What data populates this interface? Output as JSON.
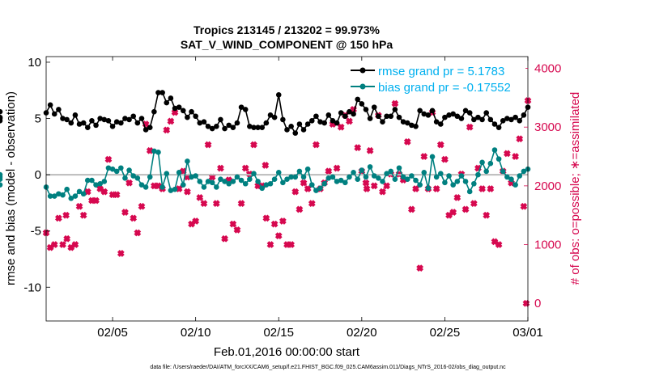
{
  "chart_data": {
    "type": "line",
    "title": "Tropics 213145 / 213202 = 99.973%",
    "subtitle": "SAT_V_WIND_COMPONENT @ 150 hPa",
    "xlabel": "Feb.01,2016 00:00:00 start",
    "ylabel": "rmse and bias (model - observation)",
    "y2label": "# of obs: o=possible; ∗=assimilated",
    "footer": "data file: /Users/raeder/DAI/ATM_forcXX/CAM6_setup/f.e21.FHIST_BGC.f09_025.CAM6assim.011/Diags_NTrS_2016-02/obs_diag_output.nc",
    "xlim": [
      1,
      30
    ],
    "ylim": [
      -13,
      10.5
    ],
    "y2lim": [
      -300,
      4200
    ],
    "xticks": [
      5,
      10,
      15,
      20,
      25,
      30
    ],
    "xtick_labels": [
      "02/05",
      "02/10",
      "02/15",
      "02/20",
      "02/25",
      "03/01"
    ],
    "yticks": [
      10,
      5,
      0,
      -5,
      -10
    ],
    "y2ticks": [
      4000,
      3000,
      2000,
      1000,
      0
    ],
    "legend": [
      "rmse grand pr = 5.1783",
      "bias grand pr = -0.17552"
    ],
    "legend_position": "top-right",
    "colors": {
      "rmse": "#000000",
      "bias": "#008080",
      "obs": "#d6084f",
      "zero_line": "#bbbbbb",
      "title": "#000000",
      "legend_text": "#00b0ef"
    },
    "x_rmse": [
      1.0,
      1.25,
      1.5,
      1.75,
      2.0,
      2.25,
      2.5,
      2.75,
      3.0,
      3.25,
      3.5,
      3.75,
      4.0,
      4.25,
      4.5,
      4.75,
      5.0,
      5.25,
      5.5,
      5.75,
      6.0,
      6.25,
      6.5,
      6.75,
      7.0,
      7.25,
      7.5,
      7.75,
      8.0,
      8.25,
      8.5,
      8.75,
      9.0,
      9.25,
      9.5,
      9.75,
      10.0,
      10.25,
      10.5,
      10.75,
      11.0,
      11.25,
      11.5,
      11.75,
      12.0,
      12.25,
      12.5,
      12.75,
      13.0,
      13.25,
      13.5,
      13.75,
      14.0,
      14.25,
      14.5,
      14.75,
      15.0,
      15.25,
      15.5,
      15.75,
      16.0,
      16.25,
      16.5,
      16.75,
      17.0,
      17.25,
      17.5,
      17.75,
      18.0,
      18.25,
      18.5,
      18.75,
      19.0,
      19.25,
      19.5,
      19.75,
      20.0,
      20.25,
      20.5,
      20.75,
      21.0,
      21.25,
      21.5,
      21.75,
      22.0,
      22.25,
      22.5,
      22.75,
      23.0,
      23.25,
      23.5,
      23.75,
      24.0,
      24.25,
      24.5,
      24.75,
      25.0,
      25.25,
      25.5,
      25.75,
      26.0,
      26.25,
      26.5,
      26.75,
      27.0,
      27.25,
      27.5,
      27.75,
      28.0,
      28.25,
      28.5,
      28.75,
      29.0,
      29.25,
      29.5,
      29.75,
      30.0
    ],
    "rmse": [
      5.5,
      6.2,
      5.4,
      5.8,
      5.0,
      4.9,
      4.6,
      5.3,
      4.5,
      4.6,
      4.2,
      4.8,
      4.4,
      5.0,
      4.9,
      4.8,
      4.3,
      4.7,
      4.6,
      5.0,
      4.9,
      5.2,
      4.6,
      5.0,
      4.0,
      4.2,
      5.6,
      7.3,
      7.3,
      6.4,
      6.8,
      5.9,
      6.0,
      5.7,
      5.1,
      5.6,
      5.2,
      4.6,
      4.7,
      4.3,
      4.1,
      4.3,
      4.9,
      4.1,
      4.4,
      4.2,
      4.6,
      6.0,
      5.8,
      4.3,
      4.2,
      4.2,
      4.2,
      4.6,
      5.3,
      5.1,
      7.1,
      4.9,
      4.0,
      4.3,
      3.7,
      4.5,
      4.0,
      4.5,
      4.8,
      5.2,
      4.7,
      4.6,
      5.3,
      4.8,
      4.6,
      5.5,
      5.2,
      5.6,
      5.4,
      6.7,
      6.3,
      5.8,
      5.0,
      6.0,
      5.2,
      4.7,
      5.2,
      5.2,
      5.8,
      5.1,
      4.7,
      4.6,
      4.4,
      4.3,
      5.7,
      5.4,
      5.3,
      5.7,
      4.7,
      4.5,
      5.1,
      5.3,
      5.4,
      5.2,
      5.0,
      5.7,
      5.5,
      4.9,
      5.1,
      4.9,
      5.5,
      4.9,
      4.5,
      4.2,
      4.8,
      5.0,
      4.9,
      5.1,
      4.8,
      5.3,
      6.0,
      5.6,
      4.8,
      5.1,
      5.0
    ],
    "x_bias": [
      1.0,
      1.25,
      1.5,
      1.75,
      2.0,
      2.25,
      2.5,
      2.75,
      3.0,
      3.25,
      3.5,
      3.75,
      4.0,
      4.25,
      4.5,
      4.75,
      5.0,
      5.25,
      5.5,
      5.75,
      6.0,
      6.25,
      6.5,
      6.75,
      7.0,
      7.25,
      7.5,
      7.75,
      8.0,
      8.25,
      8.5,
      8.75,
      9.0,
      9.25,
      9.5,
      9.75,
      10.0,
      10.25,
      10.5,
      10.75,
      11.0,
      11.25,
      11.5,
      11.75,
      12.0,
      12.25,
      12.5,
      12.75,
      13.0,
      13.25,
      13.5,
      13.75,
      14.0,
      14.25,
      14.5,
      14.75,
      15.0,
      15.25,
      15.5,
      15.75,
      16.0,
      16.25,
      16.5,
      16.75,
      17.0,
      17.25,
      17.5,
      17.75,
      18.0,
      18.25,
      18.5,
      18.75,
      19.0,
      19.25,
      19.5,
      19.75,
      20.0,
      20.25,
      20.5,
      20.75,
      21.0,
      21.25,
      21.5,
      21.75,
      22.0,
      22.25,
      22.5,
      22.75,
      23.0,
      23.25,
      23.5,
      23.75,
      24.0,
      24.25,
      24.5,
      24.75,
      25.0,
      25.25,
      25.5,
      25.75,
      26.0,
      26.25,
      26.5,
      26.75,
      27.0,
      27.25,
      27.5,
      27.75,
      28.0,
      28.25,
      28.5,
      28.75,
      29.0,
      29.25,
      29.5,
      29.75,
      30.0
    ],
    "bias": [
      -1.1,
      -1.9,
      -1.9,
      -1.7,
      -1.8,
      -1.3,
      -2.1,
      -1.9,
      -1.5,
      -1.7,
      -0.5,
      -0.5,
      -0.9,
      -0.8,
      -0.6,
      0.6,
      0.5,
      0.3,
      0.6,
      -0.3,
      0.4,
      -0.1,
      -0.3,
      -0.9,
      -1.1,
      -0.2,
      2.1,
      2.0,
      -1.1,
      0.1,
      -1.4,
      -1.3,
      0.2,
      -0.9,
      1.2,
      -0.2,
      -0.1,
      -0.6,
      -1.1,
      -0.6,
      -0.7,
      -1.1,
      -0.4,
      -0.6,
      -0.8,
      -0.6,
      -0.2,
      -0.5,
      -0.8,
      -0.4,
      0.1,
      -0.6,
      -1.2,
      -0.9,
      -0.8,
      -0.4,
      0.2,
      -0.7,
      -0.4,
      -0.2,
      -0.2,
      0.3,
      -0.2,
      0.5,
      -0.9,
      -1.4,
      -1.2,
      -0.8,
      -0.3,
      -0.2,
      -0.6,
      -0.5,
      -0.7,
      -0.2,
      0.2,
      -0.4,
      0.4,
      -0.2,
      0.7,
      -0.1,
      -0.3,
      -0.6,
      0.1,
      0.3,
      -0.4,
      0.6,
      -0.2,
      -0.4,
      -0.1,
      -0.5,
      -0.9,
      0.2,
      -1.2,
      1.6,
      -0.2,
      0.1,
      -0.7,
      -0.1,
      -0.9,
      -0.6,
      -0.1,
      -0.6,
      -1.5,
      -0.8,
      0.0,
      1.1,
      0.3,
      1.0,
      2.2,
      1.4,
      0.3,
      -0.2,
      -0.4,
      -0.9,
      -0.1,
      0.3,
      0.5,
      -0.4,
      -0.9,
      0.0,
      -0.2
    ],
    "x_obs": [
      1.0,
      1.25,
      1.5,
      1.75,
      2.0,
      2.25,
      2.5,
      2.75,
      3.0,
      3.25,
      3.5,
      3.75,
      4.0,
      4.25,
      4.5,
      4.75,
      5.0,
      5.25,
      5.5,
      5.75,
      6.0,
      6.25,
      6.5,
      6.75,
      7.0,
      7.25,
      7.5,
      7.75,
      8.0,
      8.25,
      8.5,
      8.75,
      9.0,
      9.25,
      9.5,
      9.75,
      10.0,
      10.25,
      10.5,
      10.75,
      11.0,
      11.25,
      11.5,
      11.75,
      12.0,
      12.25,
      12.5,
      12.75,
      13.0,
      13.25,
      13.5,
      13.75,
      14.0,
      14.25,
      14.5,
      14.75,
      15.0,
      15.25,
      15.5,
      15.75,
      16.0,
      16.25,
      16.5,
      16.75,
      17.0,
      17.25,
      17.5,
      17.75,
      18.0,
      18.25,
      18.5,
      18.75,
      19.0,
      19.25,
      19.5,
      19.75,
      20.0,
      20.25,
      20.5,
      20.75,
      21.0,
      21.25,
      21.5,
      21.75,
      22.0,
      22.25,
      22.5,
      22.75,
      23.0,
      23.25,
      23.5,
      23.75,
      24.0,
      24.25,
      24.5,
      24.75,
      25.0,
      25.25,
      25.5,
      25.75,
      26.0,
      26.25,
      26.5,
      26.75,
      27.0,
      27.25,
      27.5,
      27.75,
      28.0,
      28.25,
      28.5,
      28.75,
      29.0,
      29.25,
      29.5,
      29.75,
      30.0
    ],
    "obs": [
      1200,
      950,
      1000,
      1450,
      1000,
      1100,
      950,
      1000,
      1650,
      1500,
      1900,
      1750,
      1750,
      1950,
      1900,
      2450,
      1850,
      1850,
      850,
      1550,
      2050,
      1450,
      1200,
      1650,
      3050,
      2600,
      2000,
      2000,
      1950,
      2950,
      3100,
      3250,
      1950,
      2250,
      1900,
      1350,
      1400,
      1800,
      1700,
      2700,
      2150,
      1700,
      2300,
      1100,
      2100,
      1350,
      1250,
      1700,
      2300,
      2200,
      2700,
      2000,
      2000,
      1450,
      1000,
      1350,
      1150,
      1400,
      1000,
      1000,
      1900,
      1600,
      2050,
      1950,
      1700,
      2700,
      1950,
      2050,
      2250,
      3050,
      2300,
      3000,
      3200,
      3100,
      3300,
      2650,
      2250,
      2050,
      2600,
      2000,
      3200,
      1900,
      2000,
      2200,
      3400,
      2200,
      2100,
      2750,
      1600,
      1950,
      600,
      2500,
      1950,
      3250,
      1950,
      2700,
      2450,
      1500,
      1550,
      1800,
      2200,
      1600,
      3000,
      1700,
      2300,
      1950,
      1500,
      1950,
      1050,
      1000,
      2250,
      2550,
      2050,
      2500,
      2800,
      1650,
      3450,
      1850,
      2300,
      1600,
      3100
    ],
    "obs_extra": [
      {
        "x": 2.2,
        "y": 1500
      },
      {
        "x": 9.5,
        "y": 2150
      },
      {
        "x": 14.2,
        "y": 2350
      },
      {
        "x": 20.3,
        "y": 1950
      },
      {
        "x": 29.9,
        "y": 0
      }
    ]
  }
}
